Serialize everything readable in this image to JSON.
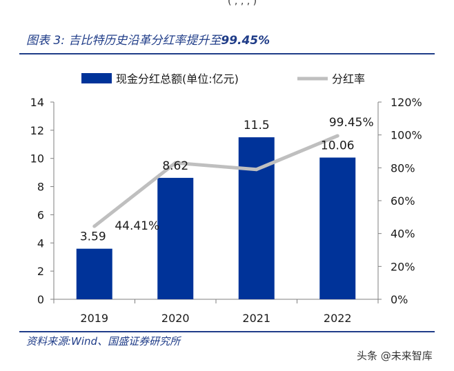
{
  "header_fragment": "( , , , )",
  "figure": {
    "label": "图表 3:",
    "title_text": "吉比特历史沿革分红率提升至",
    "title_highlight": "99.45%"
  },
  "source": "资料来源:Wind、国盛证券研究所",
  "watermark": "头条 @未来智库",
  "colors": {
    "bar": "#003399",
    "line": "#bfbfbf",
    "title": "#1f3c88"
  },
  "chart_data": {
    "type": "bar",
    "categories": [
      "2019",
      "2020",
      "2021",
      "2022"
    ],
    "series": [
      {
        "name": "现金分红总额(单位:亿元)",
        "type": "bar",
        "axis": "left",
        "values": [
          3.59,
          8.62,
          11.5,
          10.06
        ],
        "labels": [
          "3.59",
          "8.62",
          "11.5",
          "10.06"
        ]
      },
      {
        "name": "分红率",
        "type": "line",
        "axis": "right",
        "values": [
          44.41,
          83,
          79,
          99.45
        ],
        "labels": [
          "44.41%",
          "",
          "",
          "99.45%"
        ]
      }
    ],
    "y_left": {
      "min": 0,
      "max": 14,
      "ticks": [
        "0",
        "2",
        "4",
        "6",
        "8",
        "10",
        "12",
        "14"
      ]
    },
    "y_right": {
      "min": 0,
      "max": 120,
      "ticks": [
        "0%",
        "20%",
        "40%",
        "60%",
        "80%",
        "100%",
        "120%"
      ]
    },
    "legend_position": "top",
    "grid": false
  }
}
